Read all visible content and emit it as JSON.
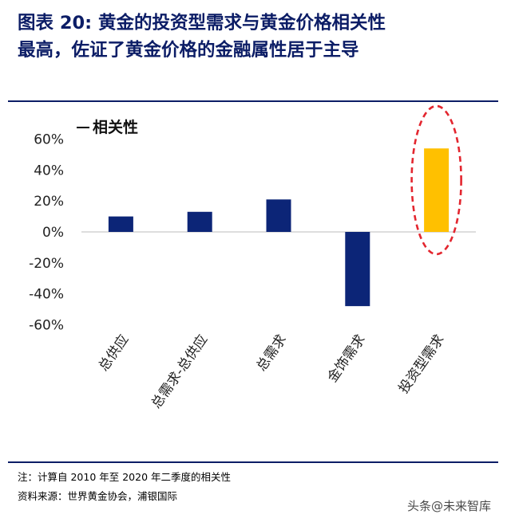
{
  "figure": {
    "label": "图表",
    "number": "20:",
    "title_rest": " 黄金的投资型需求与黄金价格相关性",
    "title_line2": "最高，佐证了黄金价格的金融属性居于主导"
  },
  "chart_data": {
    "type": "bar",
    "legend": [
      "相关性"
    ],
    "legend_placement": "top-left",
    "categories": [
      "总供应",
      "总需求-总供应",
      "总需求",
      "金饰需求",
      "投资型需求"
    ],
    "series": [
      {
        "name": "相关性",
        "values": [
          0.1,
          0.13,
          0.21,
          -0.48,
          0.54
        ]
      }
    ],
    "yticks": [
      "60%",
      "40%",
      "20%",
      "0%",
      "-20%",
      "-40%",
      "-60%"
    ],
    "ylim": [
      -0.6,
      0.6
    ],
    "grid": false,
    "colors": {
      "default": "#0c2577",
      "highlight": "#ffc000",
      "annotation": "#e3262f"
    },
    "highlight_index": 4,
    "annotation": "dashed red ellipse around 投资型需求"
  },
  "notes": {
    "line1": "注：计算自 2010 年至 2020 年二季度的相关性",
    "line2": "资料来源：世界黄金协会，浦银国际"
  },
  "watermark": "头条@未来智库"
}
